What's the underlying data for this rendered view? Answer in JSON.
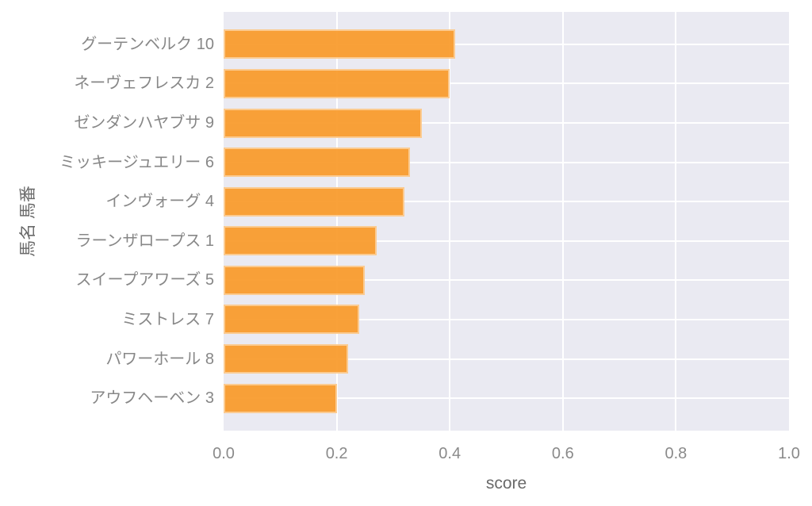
{
  "chart_data": {
    "type": "bar",
    "orientation": "horizontal",
    "xlabel": "score",
    "ylabel": "馬名 馬番",
    "xlim": [
      0.0,
      1.0
    ],
    "xtick_labels": [
      "0.0",
      "0.2",
      "0.4",
      "0.6",
      "0.8",
      "1.0"
    ],
    "xtick_values": [
      0.0,
      0.2,
      0.4,
      0.6,
      0.8,
      1.0
    ],
    "grid": true,
    "legend": false,
    "categories": [
      "グーテンベルク 10",
      "ネーヴェフレスカ 2",
      "ゼンダンハヤブサ 9",
      "ミッキージュエリー 6",
      "インヴォーグ 4",
      "ラーンザロープス 1",
      "スイープアワーズ 5",
      "ミストレス 7",
      "パワーホール 8",
      "アウフヘーベン 3"
    ],
    "values": [
      0.41,
      0.4,
      0.35,
      0.33,
      0.32,
      0.27,
      0.25,
      0.24,
      0.22,
      0.2
    ],
    "colors": {
      "bar": "#F89928",
      "plot_background": "#EAEAF2",
      "grid": "#FFFFFF",
      "tick_text": "#8A8A8A",
      "axis_label_text": "#6A6A6A",
      "figure_background": "#FFFFFF"
    }
  }
}
